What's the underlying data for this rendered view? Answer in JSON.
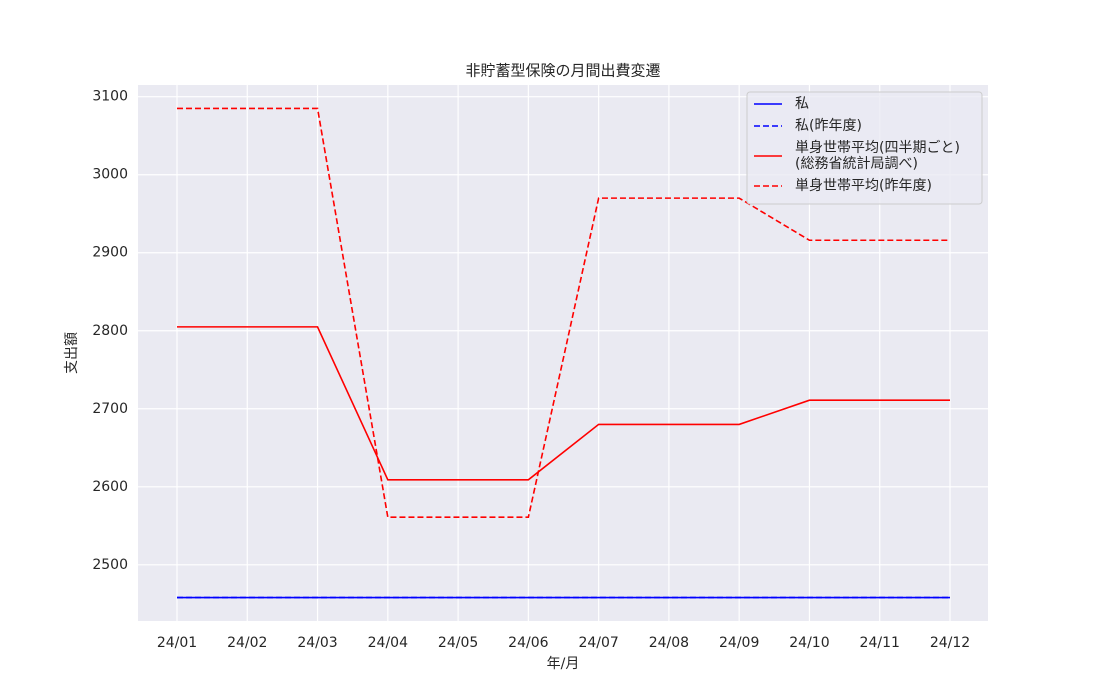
{
  "chart_data": {
    "type": "line",
    "title": "非貯蓄型保険の月間出費変遷",
    "xlabel": "年/月",
    "ylabel": "支出額",
    "categories": [
      "24/01",
      "24/02",
      "24/03",
      "24/04",
      "24/05",
      "24/06",
      "24/07",
      "24/08",
      "24/09",
      "24/10",
      "24/11",
      "24/12"
    ],
    "series": [
      {
        "name": "私",
        "color": "#0000ff",
        "dash": false,
        "values": [
          2458,
          2458,
          2458,
          2458,
          2458,
          2458,
          2458,
          2458,
          2458,
          2458,
          2458,
          2458
        ]
      },
      {
        "name": "私(昨年度)",
        "color": "#0000ff",
        "dash": true,
        "values": [
          2458,
          2458,
          2458,
          2458,
          2458,
          2458,
          2458,
          2458,
          2458,
          2458,
          2458,
          2458
        ]
      },
      {
        "name": "単身世帯平均(四半期ごと)\n(総務省統計局調べ)",
        "color": "#ff0000",
        "dash": false,
        "values": [
          2805,
          2805,
          2805,
          2609,
          2609,
          2609,
          2680,
          2680,
          2680,
          2711,
          2711,
          2711
        ]
      },
      {
        "name": "単身世帯平均(昨年度)",
        "color": "#ff0000",
        "dash": true,
        "values": [
          3085,
          3085,
          3085,
          2561,
          2561,
          2561,
          2970,
          2970,
          2970,
          2916,
          2916,
          2916
        ]
      }
    ],
    "ylim": [
      2428,
      3115
    ],
    "yticks": [
      2500,
      2600,
      2700,
      2800,
      2900,
      3000,
      3100
    ],
    "grid": true,
    "legend": "upper right"
  }
}
